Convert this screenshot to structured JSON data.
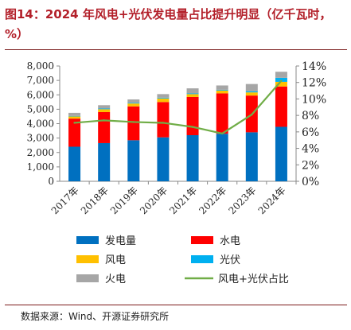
{
  "title": "图14：2024 年风电+光伏发电量占比提升明显（亿千瓦时，%）",
  "source": "数据来源：Wind、开源证券研究所",
  "chart_data": {
    "type": "bar",
    "stacked": true,
    "categories": [
      "2017年",
      "2018年",
      "2019年",
      "2020年",
      "2021年",
      "2022年",
      "2023年",
      "2024年"
    ],
    "series": [
      {
        "name": "发电量",
        "color": "#0070c0",
        "values": [
          2400,
          2650,
          2850,
          3050,
          3200,
          3300,
          3400,
          3780
        ]
      },
      {
        "name": "水电",
        "color": "#ff0000",
        "values": [
          1950,
          2150,
          2350,
          2450,
          2650,
          2800,
          2550,
          2800
        ]
      },
      {
        "name": "风电",
        "color": "#ffc000",
        "values": [
          150,
          200,
          200,
          250,
          200,
          200,
          220,
          320
        ]
      },
      {
        "name": "光伏",
        "color": "#00b0f0",
        "values": [
          30,
          50,
          50,
          50,
          50,
          50,
          80,
          280
        ]
      },
      {
        "name": "火电",
        "color": "#a6a6a6",
        "values": [
          220,
          230,
          230,
          250,
          350,
          300,
          500,
          420
        ]
      }
    ],
    "line_series": {
      "name": "风电+光伏占比",
      "color": "#70ad47",
      "axis": "right",
      "values": [
        7.1,
        7.4,
        7.2,
        7.1,
        6.6,
        5.8,
        8.1,
        12.2
      ]
    },
    "y_left": {
      "ylim": [
        0,
        8000
      ],
      "ticks": [
        "0",
        "1,000",
        "2,000",
        "3,000",
        "4,000",
        "5,000",
        "6,000",
        "7,000",
        "8,000"
      ]
    },
    "y_right": {
      "ylim": [
        0,
        14
      ],
      "ticks": [
        "0%",
        "2%",
        "4%",
        "6%",
        "8%",
        "10%",
        "12%",
        "14%"
      ]
    },
    "grid": false,
    "legend_placement": "bottom"
  }
}
